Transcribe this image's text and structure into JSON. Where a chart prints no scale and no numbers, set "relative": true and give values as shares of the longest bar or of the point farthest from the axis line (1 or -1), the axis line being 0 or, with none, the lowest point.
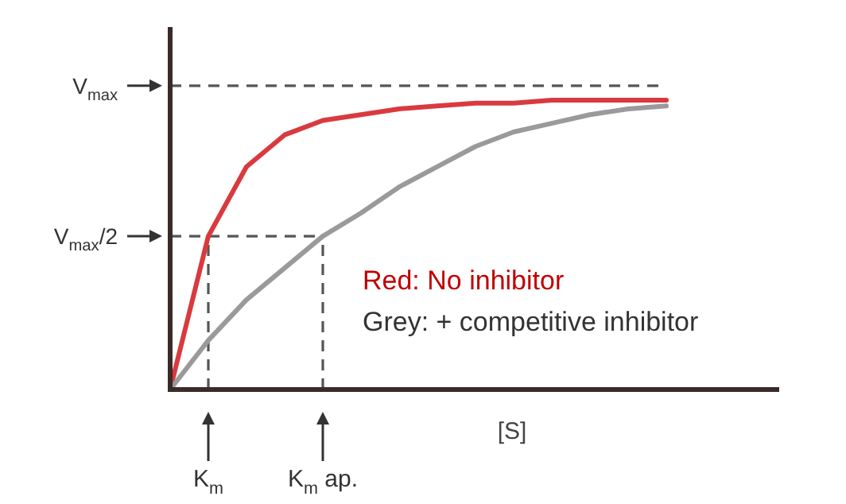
{
  "chart_data": {
    "type": "line",
    "xlabel": "[S]",
    "relative": true,
    "categories": [
      null,
      "K$_{m}$",
      null,
      null,
      "K$_{m}$ ap.",
      null,
      null,
      null,
      null,
      null,
      null,
      null,
      null,
      null
    ],
    "series": [
      {
        "color": "#d93a3f",
        "values": [
          0,
          0.53,
          0.77,
          0.88,
          0.93,
          0.95,
          0.97,
          0.98,
          0.99,
          0.99,
          1,
          1,
          1,
          1
        ]
      },
      {
        "color": "#9a9a9a",
        "values": [
          0,
          0.17,
          0.31,
          0.42,
          0.53,
          0.61,
          0.7,
          0.77,
          0.84,
          0.89,
          0.92,
          0.95,
          0.97,
          0.98
        ]
      }
    ],
    "ref_lines": [
      {
        "axis": "y",
        "value": 1.05,
        "label": "V$_{max}$",
        "line_style": "dashed"
      },
      {
        "axis": "y",
        "value": 0.53,
        "label": "V$_{max}$/2",
        "line_style": "dashed"
      }
    ],
    "annotations": [
      "Red: No inhibitor",
      "Grey: + competitive inhibitor"
    ],
    "marker": "none",
    "line_style": "solid"
  }
}
